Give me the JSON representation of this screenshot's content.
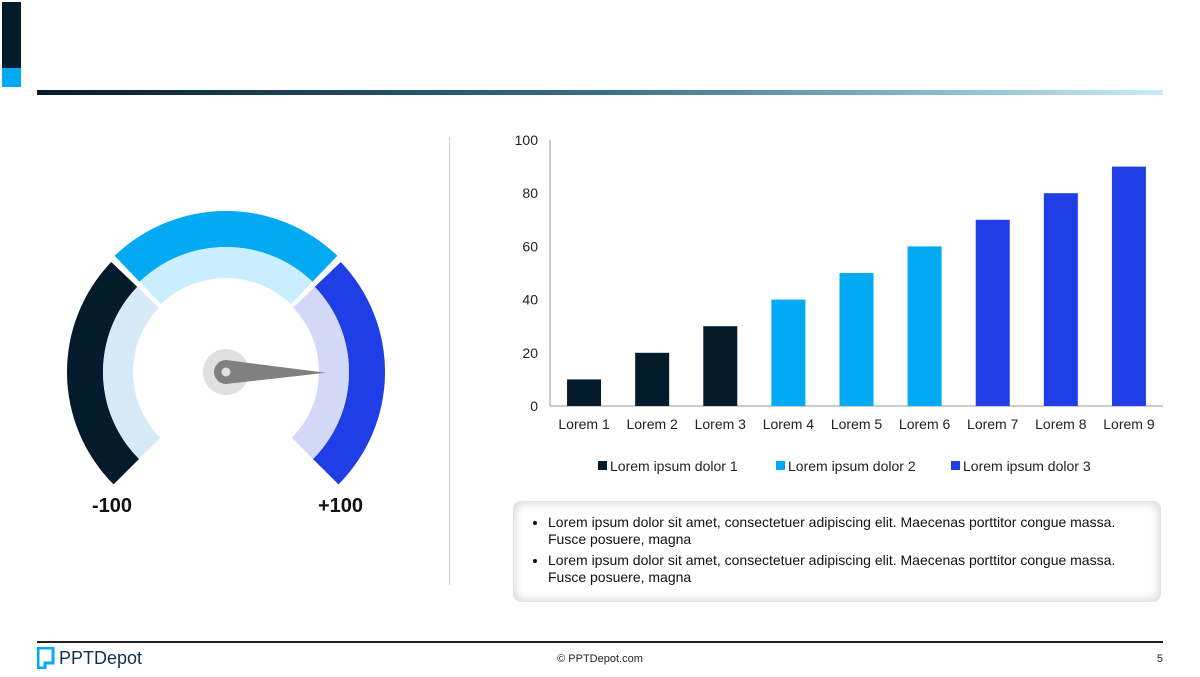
{
  "gauge": {
    "min_label": "-100",
    "max_label": "+100",
    "min": -100,
    "max": 100,
    "value": 67,
    "colors": {
      "left": "#041b2c",
      "left_inner": "#d6eaf8",
      "mid": "#02aaf3",
      "mid_inner": "#c9eefd",
      "right": "#1f3ee6",
      "right_inner": "#d3d8f8"
    }
  },
  "chart_data": {
    "type": "bar",
    "categories": [
      "Lorem 1",
      "Lorem 2",
      "Lorem 3",
      "Lorem 4",
      "Lorem 5",
      "Lorem 6",
      "Lorem 7",
      "Lorem 8",
      "Lorem 9"
    ],
    "series": [
      {
        "name": "Lorem ipsum dolor 1",
        "color": "#041b2c",
        "values": [
          10,
          20,
          30,
          null,
          null,
          null,
          null,
          null,
          null
        ]
      },
      {
        "name": "Lorem ipsum dolor 2",
        "color": "#02aaf3",
        "values": [
          null,
          null,
          null,
          40,
          50,
          60,
          null,
          null,
          null
        ]
      },
      {
        "name": "Lorem ipsum dolor 3",
        "color": "#1f3ee6",
        "values": [
          null,
          null,
          null,
          null,
          null,
          null,
          70,
          80,
          90
        ]
      }
    ],
    "yticks": [
      "0",
      "20",
      "40",
      "60",
      "80",
      "100"
    ],
    "ylim": [
      0,
      100
    ],
    "legend": "bottom",
    "grid": false,
    "title": "",
    "xlabel": "",
    "ylabel": ""
  },
  "notes": [
    "Lorem ipsum dolor sit amet, consectetuer adipiscing elit. Maecenas porttitor congue massa. Fusce posuere, magna",
    "Lorem ipsum dolor sit amet, consectetuer adipiscing elit. Maecenas porttitor congue massa. Fusce posuere, magna"
  ],
  "footer": {
    "logo": "PPTDepot",
    "copyright": "© PPTDepot.com",
    "page": "5"
  }
}
